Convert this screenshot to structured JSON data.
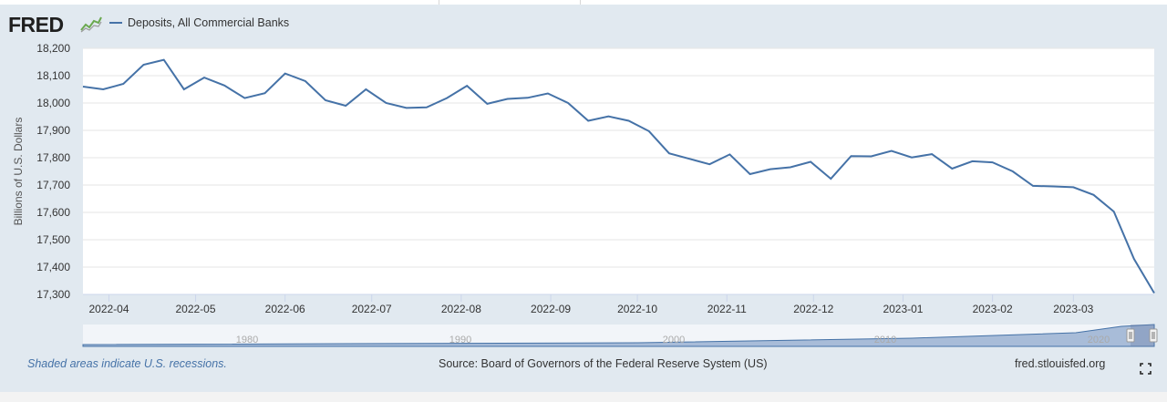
{
  "header": {
    "logo_text": "FRED",
    "logo_icon": "graph-icon",
    "legend_label": "Deposits, All Commercial Banks",
    "series_color": "#4572a7"
  },
  "footer": {
    "recession_note": "Shaded areas indicate U.S. recessions.",
    "source": "Source: Board of Governors of the Federal Reserve System (US)",
    "site": "fred.stlouisfed.org",
    "fullscreen_icon": "expand-icon"
  },
  "chart_data": {
    "type": "line",
    "title": "",
    "ylabel": "Billions of U.S. Dollars",
    "xlabel": "",
    "ylim": [
      17300,
      18200
    ],
    "yticks": [
      17300,
      17400,
      17500,
      17600,
      17700,
      17800,
      17900,
      18000,
      18100,
      18200
    ],
    "ytick_labels": [
      "17,300",
      "17,400",
      "17,500",
      "17,600",
      "17,700",
      "17,800",
      "17,900",
      "18,000",
      "18,100",
      "18,200"
    ],
    "xlim": [
      "2022-03-23",
      "2023-03-29"
    ],
    "xticks": [
      "2022-04-01",
      "2022-05-01",
      "2022-06-01",
      "2022-07-01",
      "2022-08-01",
      "2022-09-01",
      "2022-10-01",
      "2022-11-01",
      "2022-12-01",
      "2023-01-01",
      "2023-02-01",
      "2023-03-01"
    ],
    "xtick_labels": [
      "2022-04",
      "2022-05",
      "2022-06",
      "2022-07",
      "2022-08",
      "2022-09",
      "2022-10",
      "2022-11",
      "2022-12",
      "2023-01",
      "2023-02",
      "2023-03"
    ],
    "grid": true,
    "series": [
      {
        "name": "Deposits, All Commercial Banks",
        "color": "#4572a7",
        "x": [
          "2022-03-23",
          "2022-03-30",
          "2022-04-06",
          "2022-04-13",
          "2022-04-20",
          "2022-04-27",
          "2022-05-04",
          "2022-05-11",
          "2022-05-18",
          "2022-05-25",
          "2022-06-01",
          "2022-06-08",
          "2022-06-15",
          "2022-06-22",
          "2022-06-29",
          "2022-07-06",
          "2022-07-13",
          "2022-07-20",
          "2022-07-27",
          "2022-08-03",
          "2022-08-10",
          "2022-08-17",
          "2022-08-24",
          "2022-08-31",
          "2022-09-07",
          "2022-09-14",
          "2022-09-21",
          "2022-09-28",
          "2022-10-05",
          "2022-10-12",
          "2022-10-19",
          "2022-10-26",
          "2022-11-02",
          "2022-11-09",
          "2022-11-16",
          "2022-11-23",
          "2022-11-30",
          "2022-12-07",
          "2022-12-14",
          "2022-12-21",
          "2022-12-28",
          "2023-01-04",
          "2023-01-11",
          "2023-01-18",
          "2023-01-25",
          "2023-02-01",
          "2023-02-08",
          "2023-02-15",
          "2023-02-22",
          "2023-03-01",
          "2023-03-08",
          "2023-03-15",
          "2023-03-22",
          "2023-03-29"
        ],
        "y": [
          18060,
          18050,
          18070,
          18140,
          18158,
          18050,
          18093,
          18064,
          18018,
          18036,
          18108,
          18080,
          18010,
          17990,
          18050,
          18000,
          17982,
          17984,
          18018,
          18063,
          17997,
          18015,
          18019,
          18035,
          18000,
          17935,
          17951,
          17935,
          17897,
          17816,
          17796,
          17776,
          17812,
          17740,
          17758,
          17765,
          17785,
          17723,
          17806,
          17805,
          17825,
          17801,
          17813,
          17760,
          17787,
          17783,
          17750,
          17697,
          17695,
          17692,
          17664,
          17603,
          17430,
          17305
        ]
      }
    ],
    "navigator": {
      "x_labels": [
        "1980",
        "1990",
        "2000",
        "2010",
        "2020"
      ]
    }
  }
}
